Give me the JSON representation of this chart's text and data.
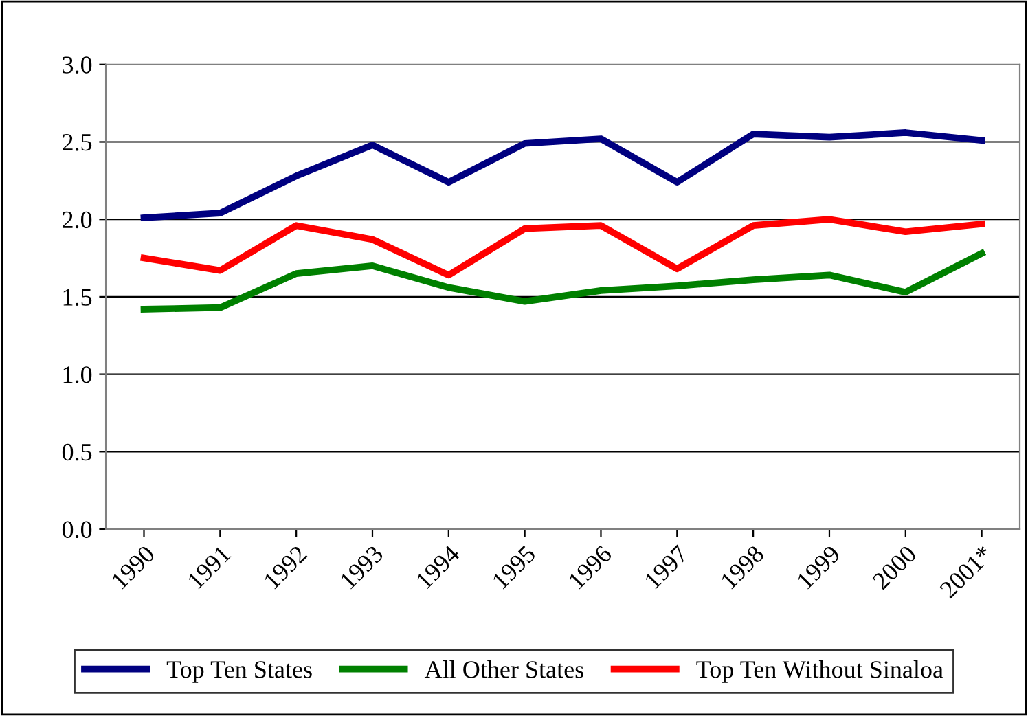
{
  "chart_data": {
    "type": "line",
    "categories": [
      "1990",
      "1991",
      "1992",
      "1993",
      "1994",
      "1995",
      "1996",
      "1997",
      "1998",
      "1999",
      "2000",
      "2001*"
    ],
    "series": [
      {
        "name": "Top Ten States",
        "color": "#000080",
        "values": [
          2.01,
          2.04,
          2.28,
          2.48,
          2.24,
          2.49,
          2.52,
          2.24,
          2.55,
          2.53,
          2.56,
          2.51
        ]
      },
      {
        "name": "All Other States",
        "color": "#008000",
        "values": [
          1.42,
          1.43,
          1.65,
          1.7,
          1.56,
          1.47,
          1.54,
          1.57,
          1.61,
          1.64,
          1.53,
          1.78
        ]
      },
      {
        "name": "Top Ten Without Sinaloa",
        "color": "#ff0000",
        "values": [
          1.75,
          1.67,
          1.96,
          1.87,
          1.64,
          1.94,
          1.96,
          1.68,
          1.96,
          2.0,
          1.92,
          1.97
        ]
      }
    ],
    "ylim": [
      0,
      3
    ],
    "yticks": [
      {
        "value": 0,
        "label": "0.0"
      },
      {
        "value": 0.5,
        "label": "0.5"
      },
      {
        "value": 1,
        "label": "1.0"
      },
      {
        "value": 1.5,
        "label": "1.5"
      },
      {
        "value": 2,
        "label": "2.0"
      },
      {
        "value": 2.5,
        "label": "2.5"
      },
      {
        "value": 3,
        "label": "3.0"
      }
    ],
    "grid": "y",
    "legend": "bottom",
    "marker": "none",
    "line_style": "solid"
  }
}
